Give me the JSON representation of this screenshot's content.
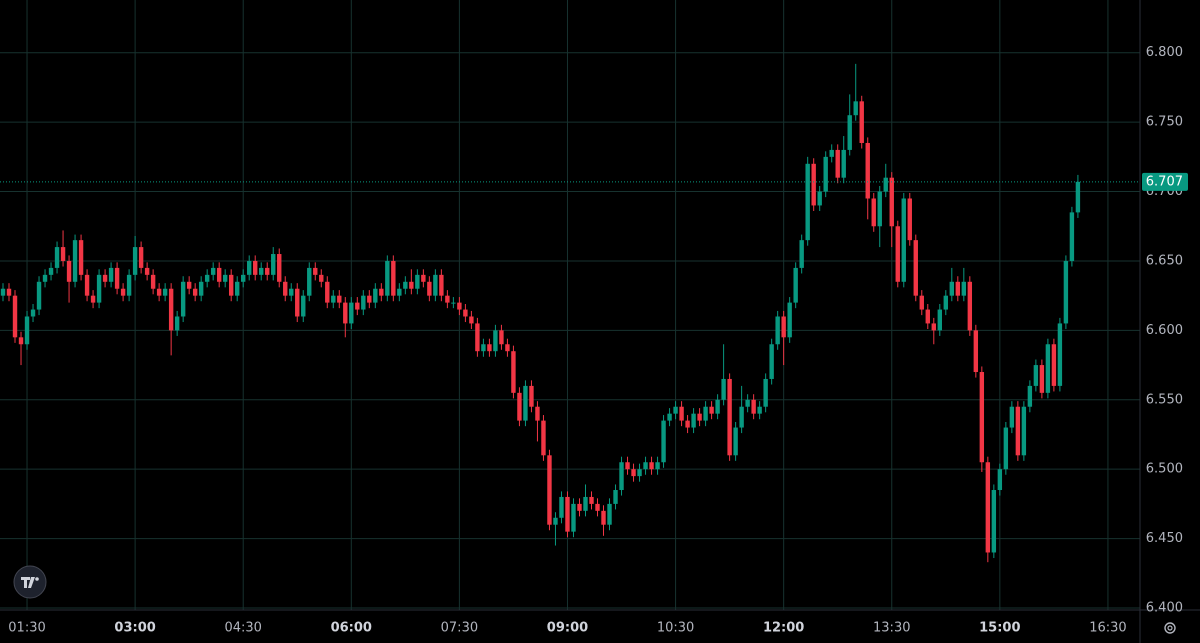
{
  "chart_data": {
    "type": "candlestick",
    "x": [
      70,
      75,
      80,
      85,
      90,
      95,
      100,
      105,
      110,
      115,
      120,
      125,
      130,
      135,
      140,
      145,
      150,
      155,
      160,
      165,
      170,
      175,
      180,
      185,
      190,
      195,
      200,
      205,
      210,
      215,
      220,
      225,
      230,
      235,
      240,
      245,
      250,
      255,
      260,
      265,
      270,
      275,
      280,
      285,
      290,
      295,
      300,
      305,
      310,
      315,
      320,
      325,
      330,
      335,
      340,
      345,
      350,
      355,
      360,
      365,
      370,
      375,
      380,
      385,
      390,
      395,
      400,
      405,
      410,
      415,
      420,
      425,
      430,
      435,
      440,
      445,
      450,
      455,
      460,
      465,
      470,
      475,
      480,
      485,
      490,
      495,
      500,
      505,
      510,
      515,
      520,
      525,
      530,
      535,
      540,
      545,
      550,
      555,
      560,
      565,
      570,
      575,
      580,
      585,
      590,
      595,
      600,
      605,
      610,
      615,
      620,
      625,
      630,
      635,
      640,
      645,
      650,
      655,
      660,
      665,
      670,
      675,
      680,
      685,
      690,
      695,
      700,
      705,
      710,
      715,
      720,
      725,
      730,
      735,
      740,
      745,
      750,
      755,
      760,
      765,
      770,
      775,
      780,
      785,
      790,
      795,
      800,
      805,
      810,
      815,
      820,
      825,
      830,
      835,
      840,
      845,
      850,
      855,
      860,
      865,
      870,
      875,
      880,
      885,
      890,
      895,
      900,
      905,
      910,
      915,
      920,
      925,
      930,
      935,
      940,
      945,
      950,
      955,
      960,
      965
    ],
    "open": [
      6.625,
      6.63,
      6.625,
      6.595,
      6.59,
      6.61,
      6.615,
      6.635,
      6.64,
      6.645,
      6.66,
      6.65,
      6.635,
      6.665,
      6.64,
      6.625,
      6.62,
      6.64,
      6.635,
      6.645,
      6.63,
      6.625,
      6.64,
      6.66,
      6.645,
      6.64,
      6.63,
      6.625,
      6.63,
      6.6,
      6.61,
      6.635,
      6.63,
      6.625,
      6.635,
      6.64,
      6.645,
      6.635,
      6.64,
      6.625,
      6.635,
      6.64,
      6.65,
      6.64,
      6.645,
      6.64,
      6.655,
      6.635,
      6.625,
      6.63,
      6.61,
      6.625,
      6.645,
      6.64,
      6.635,
      6.62,
      6.625,
      6.62,
      6.605,
      6.62,
      6.615,
      6.625,
      6.62,
      6.63,
      6.625,
      6.65,
      6.625,
      6.63,
      6.635,
      6.63,
      6.64,
      6.635,
      6.625,
      6.64,
      6.625,
      6.62,
      6.62,
      6.615,
      6.61,
      6.605,
      6.585,
      6.59,
      6.585,
      6.6,
      6.59,
      6.585,
      6.555,
      6.535,
      6.56,
      6.545,
      6.535,
      6.51,
      6.46,
      6.465,
      6.48,
      6.455,
      6.475,
      6.47,
      6.48,
      6.475,
      6.47,
      6.46,
      6.475,
      6.485,
      6.505,
      6.5,
      6.495,
      6.5,
      6.505,
      6.5,
      6.505,
      6.535,
      6.54,
      6.545,
      6.535,
      6.53,
      6.54,
      6.535,
      6.545,
      6.54,
      6.55,
      6.565,
      6.51,
      6.53,
      6.545,
      6.55,
      6.54,
      6.545,
      6.565,
      6.59,
      6.61,
      6.595,
      6.62,
      6.645,
      6.665,
      6.72,
      6.69,
      6.7,
      6.725,
      6.73,
      6.71,
      6.73,
      6.755,
      6.765,
      6.735,
      6.695,
      6.675,
      6.7,
      6.71,
      6.675,
      6.635,
      6.695,
      6.665,
      6.625,
      6.615,
      6.605,
      6.6,
      6.615,
      6.625,
      6.635,
      6.625,
      6.635,
      6.6,
      6.57,
      6.505,
      6.44,
      6.485,
      6.5,
      6.53,
      6.545,
      6.51,
      6.545,
      6.56,
      6.575,
      6.555,
      6.59,
      6.56,
      6.605,
      6.65,
      6.685
    ],
    "high": [
      6.634,
      6.634,
      6.629,
      6.599,
      6.614,
      6.619,
      6.639,
      6.644,
      6.649,
      6.664,
      6.672,
      6.654,
      6.669,
      6.669,
      6.644,
      6.629,
      6.644,
      6.644,
      6.649,
      6.649,
      6.634,
      6.644,
      6.668,
      6.664,
      6.649,
      6.644,
      6.634,
      6.634,
      6.634,
      6.614,
      6.639,
      6.639,
      6.634,
      6.639,
      6.644,
      6.649,
      6.649,
      6.644,
      6.644,
      6.639,
      6.644,
      6.654,
      6.654,
      6.649,
      6.649,
      6.66,
      6.659,
      6.639,
      6.634,
      6.634,
      6.629,
      6.649,
      6.649,
      6.644,
      6.639,
      6.629,
      6.629,
      6.624,
      6.624,
      6.624,
      6.629,
      6.629,
      6.634,
      6.634,
      6.654,
      6.654,
      6.634,
      6.639,
      6.644,
      6.644,
      6.644,
      6.639,
      6.644,
      6.644,
      6.629,
      6.624,
      6.624,
      6.619,
      6.614,
      6.609,
      6.594,
      6.594,
      6.604,
      6.604,
      6.594,
      6.589,
      6.559,
      6.564,
      6.564,
      6.549,
      6.539,
      6.514,
      6.469,
      6.484,
      6.484,
      6.479,
      6.479,
      6.489,
      6.484,
      6.479,
      6.474,
      6.479,
      6.489,
      6.509,
      6.509,
      6.504,
      6.504,
      6.509,
      6.509,
      6.509,
      6.539,
      6.544,
      6.549,
      6.549,
      6.539,
      6.544,
      6.544,
      6.549,
      6.549,
      6.554,
      6.59,
      6.569,
      6.534,
      6.56,
      6.554,
      6.554,
      6.549,
      6.569,
      6.594,
      6.614,
      6.614,
      6.624,
      6.649,
      6.669,
      6.725,
      6.724,
      6.704,
      6.729,
      6.734,
      6.734,
      6.74,
      6.77,
      6.792,
      6.769,
      6.739,
      6.699,
      6.704,
      6.72,
      6.714,
      6.679,
      6.699,
      6.699,
      6.669,
      6.629,
      6.619,
      6.609,
      6.619,
      6.629,
      6.645,
      6.639,
      6.645,
      6.639,
      6.604,
      6.574,
      6.509,
      6.489,
      6.504,
      6.534,
      6.549,
      6.549,
      6.549,
      6.564,
      6.579,
      6.579,
      6.594,
      6.594,
      6.609,
      6.654,
      6.689,
      6.712
    ],
    "low": [
      6.621,
      6.621,
      6.591,
      6.575,
      6.586,
      6.606,
      6.611,
      6.631,
      6.636,
      6.641,
      6.646,
      6.62,
      6.631,
      6.636,
      6.621,
      6.616,
      6.616,
      6.631,
      6.631,
      6.626,
      6.621,
      6.621,
      6.636,
      6.641,
      6.636,
      6.626,
      6.621,
      6.621,
      6.582,
      6.596,
      6.606,
      6.626,
      6.621,
      6.621,
      6.631,
      6.636,
      6.631,
      6.631,
      6.621,
      6.621,
      6.631,
      6.636,
      6.636,
      6.636,
      6.636,
      6.636,
      6.631,
      6.621,
      6.621,
      6.606,
      6.606,
      6.621,
      6.636,
      6.631,
      6.616,
      6.616,
      6.616,
      6.595,
      6.601,
      6.611,
      6.611,
      6.616,
      6.616,
      6.621,
      6.621,
      6.621,
      6.621,
      6.626,
      6.626,
      6.626,
      6.631,
      6.621,
      6.621,
      6.621,
      6.616,
      6.616,
      6.611,
      6.606,
      6.601,
      6.581,
      6.581,
      6.581,
      6.581,
      6.586,
      6.581,
      6.551,
      6.531,
      6.531,
      6.541,
      6.52,
      6.506,
      6.456,
      6.445,
      6.461,
      6.451,
      6.451,
      6.466,
      6.466,
      6.471,
      6.466,
      6.452,
      6.456,
      6.471,
      6.481,
      6.496,
      6.491,
      6.491,
      6.496,
      6.496,
      6.496,
      6.501,
      6.531,
      6.536,
      6.531,
      6.526,
      6.526,
      6.531,
      6.531,
      6.536,
      6.536,
      6.546,
      6.506,
      6.506,
      6.526,
      6.541,
      6.536,
      6.536,
      6.541,
      6.561,
      6.586,
      6.575,
      6.591,
      6.616,
      6.641,
      6.661,
      6.686,
      6.686,
      6.696,
      6.721,
      6.706,
      6.706,
      6.726,
      6.751,
      6.731,
      6.68,
      6.671,
      6.66,
      6.696,
      6.66,
      6.631,
      6.631,
      6.661,
      6.621,
      6.611,
      6.601,
      6.59,
      6.596,
      6.611,
      6.621,
      6.621,
      6.621,
      6.596,
      6.566,
      6.498,
      6.433,
      6.436,
      6.481,
      6.496,
      6.526,
      6.506,
      6.506,
      6.541,
      6.556,
      6.551,
      6.551,
      6.556,
      6.556,
      6.601,
      6.646,
      6.681
    ],
    "close": [
      6.63,
      6.625,
      6.595,
      6.59,
      6.61,
      6.615,
      6.635,
      6.64,
      6.645,
      6.66,
      6.65,
      6.635,
      6.665,
      6.64,
      6.625,
      6.62,
      6.64,
      6.635,
      6.645,
      6.63,
      6.625,
      6.64,
      6.66,
      6.645,
      6.64,
      6.63,
      6.625,
      6.63,
      6.6,
      6.61,
      6.635,
      6.63,
      6.625,
      6.635,
      6.64,
      6.645,
      6.635,
      6.64,
      6.625,
      6.635,
      6.64,
      6.65,
      6.64,
      6.645,
      6.64,
      6.655,
      6.635,
      6.625,
      6.63,
      6.61,
      6.625,
      6.645,
      6.64,
      6.635,
      6.62,
      6.625,
      6.62,
      6.605,
      6.62,
      6.615,
      6.625,
      6.62,
      6.63,
      6.625,
      6.65,
      6.625,
      6.63,
      6.635,
      6.63,
      6.64,
      6.635,
      6.625,
      6.64,
      6.625,
      6.62,
      6.62,
      6.615,
      6.61,
      6.605,
      6.585,
      6.59,
      6.585,
      6.6,
      6.59,
      6.585,
      6.555,
      6.535,
      6.56,
      6.545,
      6.535,
      6.51,
      6.46,
      6.465,
      6.48,
      6.455,
      6.475,
      6.47,
      6.48,
      6.475,
      6.47,
      6.46,
      6.475,
      6.485,
      6.505,
      6.5,
      6.495,
      6.5,
      6.505,
      6.5,
      6.505,
      6.535,
      6.54,
      6.545,
      6.535,
      6.53,
      6.54,
      6.535,
      6.545,
      6.54,
      6.55,
      6.565,
      6.51,
      6.53,
      6.545,
      6.55,
      6.54,
      6.545,
      6.565,
      6.59,
      6.61,
      6.595,
      6.62,
      6.645,
      6.665,
      6.72,
      6.69,
      6.7,
      6.725,
      6.73,
      6.71,
      6.73,
      6.755,
      6.765,
      6.735,
      6.695,
      6.675,
      6.7,
      6.71,
      6.675,
      6.635,
      6.695,
      6.665,
      6.625,
      6.615,
      6.605,
      6.6,
      6.615,
      6.625,
      6.635,
      6.625,
      6.635,
      6.6,
      6.57,
      6.505,
      6.44,
      6.485,
      6.5,
      6.53,
      6.545,
      6.51,
      6.545,
      6.56,
      6.575,
      6.555,
      6.59,
      6.56,
      6.605,
      6.65,
      6.685,
      6.707
    ],
    "up_color": "#089981",
    "down_color": "#f23645",
    "last_price": 6.707,
    "xlim": [
      67.5,
      1016.7
    ],
    "ylim": [
      6.4,
      6.838
    ],
    "xticks": [
      {
        "value": 90,
        "label": "01:30"
      },
      {
        "value": 180,
        "label": "03:00"
      },
      {
        "value": 270,
        "label": "04:30"
      },
      {
        "value": 360,
        "label": "06:00"
      },
      {
        "value": 450,
        "label": "07:30"
      },
      {
        "value": 540,
        "label": "09:00"
      },
      {
        "value": 630,
        "label": "10:30"
      },
      {
        "value": 720,
        "label": "12:00"
      },
      {
        "value": 810,
        "label": "13:30"
      },
      {
        "value": 900,
        "label": "15:00"
      },
      {
        "value": 990,
        "label": "16:30"
      }
    ],
    "yticks": [
      {
        "value": 6.4,
        "label": "6.400"
      },
      {
        "value": 6.45,
        "label": "6.450"
      },
      {
        "value": 6.5,
        "label": "6.500"
      },
      {
        "value": 6.55,
        "label": "6.550"
      },
      {
        "value": 6.6,
        "label": "6.600"
      },
      {
        "value": 6.65,
        "label": "6.650"
      },
      {
        "value": 6.7,
        "label": "6.700"
      },
      {
        "value": 6.75,
        "label": "6.750"
      },
      {
        "value": 6.8,
        "label": "6.800"
      }
    ],
    "grid": true
  }
}
